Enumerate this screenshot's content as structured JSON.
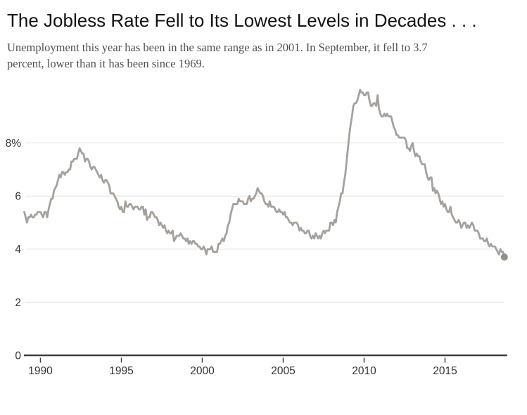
{
  "page": {
    "title": "The Jobless Rate Fell to Its Lowest Levels in Decades . . .",
    "subtitle_lines": [
      "Unemployment this year has been in the same range as in 2001. In September, it fell to 3.7",
      "percent, lower than it has been since 1969."
    ]
  },
  "chart_data": {
    "type": "line",
    "title": "The Jobless Rate Fell to Its Lowest Levels in Decades . . .",
    "subtitle": "Unemployment this year has been in the same range as in 2001. In September, it fell to 3.7 percent, lower than it has been since 1969.",
    "xlabel": "",
    "ylabel": "",
    "unit": "percent",
    "frequency": "monthly",
    "start_year": 1989,
    "start_month": 1,
    "end_label": "September 2018",
    "latest_value": 3.7,
    "values": [
      5.4,
      5.2,
      5.0,
      5.2,
      5.2,
      5.3,
      5.2,
      5.2,
      5.3,
      5.3,
      5.4,
      5.4,
      5.4,
      5.3,
      5.2,
      5.4,
      5.4,
      5.2,
      5.5,
      5.7,
      5.9,
      5.9,
      6.2,
      6.3,
      6.4,
      6.6,
      6.8,
      6.7,
      6.9,
      6.9,
      6.8,
      6.9,
      6.9,
      7.0,
      7.0,
      7.3,
      7.3,
      7.4,
      7.4,
      7.4,
      7.6,
      7.8,
      7.7,
      7.6,
      7.6,
      7.3,
      7.4,
      7.4,
      7.3,
      7.1,
      7.0,
      7.1,
      7.1,
      7.0,
      6.9,
      6.8,
      6.7,
      6.8,
      6.6,
      6.5,
      6.6,
      6.6,
      6.5,
      6.4,
      6.1,
      6.1,
      6.1,
      6.0,
      5.9,
      5.8,
      5.6,
      5.5,
      5.6,
      5.4,
      5.4,
      5.8,
      5.6,
      5.6,
      5.7,
      5.7,
      5.6,
      5.5,
      5.6,
      5.6,
      5.6,
      5.5,
      5.5,
      5.6,
      5.6,
      5.3,
      5.5,
      5.1,
      5.2,
      5.2,
      5.4,
      5.4,
      5.3,
      5.2,
      5.2,
      5.1,
      4.9,
      5.0,
      4.9,
      4.8,
      4.9,
      4.7,
      4.6,
      4.7,
      4.6,
      4.6,
      4.7,
      4.3,
      4.4,
      4.5,
      4.5,
      4.5,
      4.6,
      4.5,
      4.4,
      4.4,
      4.3,
      4.4,
      4.2,
      4.3,
      4.2,
      4.3,
      4.3,
      4.2,
      4.2,
      4.1,
      4.1,
      4.0,
      4.0,
      4.1,
      4.0,
      3.8,
      4.0,
      4.0,
      4.0,
      4.1,
      3.9,
      3.9,
      3.9,
      3.9,
      4.2,
      4.2,
      4.3,
      4.4,
      4.3,
      4.5,
      4.6,
      4.9,
      5.0,
      5.3,
      5.5,
      5.7,
      5.7,
      5.7,
      5.7,
      5.9,
      5.8,
      5.8,
      5.8,
      5.7,
      5.7,
      5.7,
      5.9,
      6.0,
      5.8,
      5.9,
      5.9,
      6.0,
      6.1,
      6.3,
      6.2,
      6.1,
      6.1,
      6.0,
      5.8,
      5.7,
      5.7,
      5.6,
      5.8,
      5.6,
      5.6,
      5.6,
      5.5,
      5.4,
      5.4,
      5.5,
      5.4,
      5.4,
      5.3,
      5.4,
      5.2,
      5.2,
      5.1,
      5.0,
      5.0,
      4.9,
      5.0,
      5.0,
      5.0,
      4.9,
      4.7,
      4.8,
      4.7,
      4.7,
      4.6,
      4.6,
      4.7,
      4.7,
      4.5,
      4.4,
      4.5,
      4.4,
      4.6,
      4.5,
      4.4,
      4.5,
      4.4,
      4.6,
      4.7,
      4.6,
      4.7,
      4.7,
      4.7,
      5.0,
      5.0,
      4.9,
      5.1,
      5.0,
      5.4,
      5.6,
      5.8,
      6.1,
      6.1,
      6.5,
      6.8,
      7.3,
      7.8,
      8.3,
      8.7,
      9.0,
      9.4,
      9.5,
      9.5,
      9.6,
      9.8,
      10.0,
      9.9,
      9.9,
      9.8,
      9.8,
      9.9,
      9.9,
      9.6,
      9.4,
      9.4,
      9.5,
      9.5,
      9.4,
      9.8,
      9.3,
      9.1,
      9.0,
      9.0,
      9.1,
      9.0,
      9.1,
      9.0,
      9.0,
      9.0,
      8.8,
      8.6,
      8.5,
      8.3,
      8.3,
      8.2,
      8.2,
      8.2,
      8.2,
      8.2,
      8.1,
      7.8,
      7.8,
      7.7,
      7.9,
      8.0,
      7.7,
      7.5,
      7.6,
      7.5,
      7.5,
      7.3,
      7.2,
      7.2,
      7.2,
      6.9,
      6.7,
      6.6,
      6.7,
      6.7,
      6.2,
      6.3,
      6.1,
      6.2,
      6.1,
      5.9,
      5.7,
      5.8,
      5.6,
      5.7,
      5.5,
      5.4,
      5.4,
      5.6,
      5.3,
      5.2,
      5.1,
      5.0,
      5.0,
      5.1,
      5.0,
      4.8,
      4.9,
      5.0,
      5.0,
      4.8,
      4.9,
      4.8,
      4.9,
      5.0,
      4.9,
      4.7,
      4.7,
      4.7,
      4.6,
      4.4,
      4.4,
      4.4,
      4.3,
      4.3,
      4.4,
      4.2,
      4.1,
      4.2,
      4.1,
      4.1,
      4.1,
      4.0,
      3.9,
      3.8,
      4.0,
      3.9,
      3.9,
      3.7
    ],
    "yticks": [
      0,
      2,
      4,
      6,
      8
    ],
    "ytick_labels": [
      "0",
      "2",
      "4",
      "6",
      "8%"
    ],
    "xticks": [
      1990,
      1995,
      2000,
      2005,
      2010,
      2015
    ],
    "xtick_labels": [
      "1990",
      "1995",
      "2000",
      "2005",
      "2010",
      "2015"
    ],
    "ylim": [
      0,
      10.6
    ],
    "xlim": [
      1989.0,
      2018.75
    ],
    "grid": "horizontal",
    "legend": "none",
    "last_point_marker": true
  },
  "colors": {
    "background": "#ffffff",
    "title_text": "#121212",
    "subtitle_text": "#4f4f4f",
    "line": "#a6a19c",
    "endpoint_dot": "#948e88",
    "gridline": "#e4e2e0",
    "axis_line": "#3f3e3c",
    "tick_mark": "#444444",
    "tick_label": "#333333"
  }
}
